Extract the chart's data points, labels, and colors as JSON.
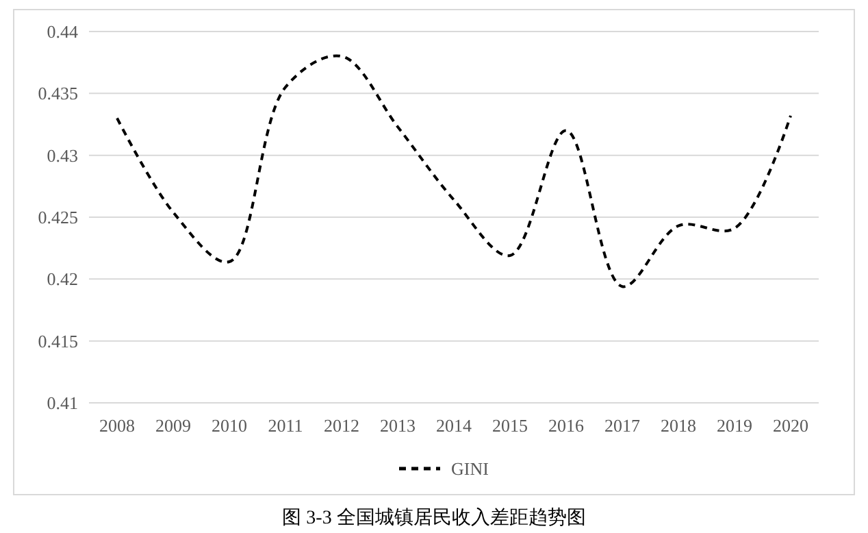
{
  "chart_data": {
    "type": "line",
    "title": "图 3-3 全国城镇居民收入差距趋势图",
    "categories": [
      "2008",
      "2009",
      "2010",
      "2011",
      "2012",
      "2013",
      "2014",
      "2015",
      "2016",
      "2017",
      "2018",
      "2019",
      "2020"
    ],
    "series": [
      {
        "name": "GINI",
        "color": "#000000",
        "values": [
          0.433,
          0.4254,
          0.4214,
          0.4355,
          0.438,
          0.4323,
          0.4264,
          0.4219,
          0.432,
          0.4194,
          0.4243,
          0.4241,
          0.4332
        ]
      }
    ],
    "ylim": [
      0.41,
      0.44
    ],
    "yticks": [
      0.41,
      0.415,
      0.42,
      0.425,
      0.43,
      0.435,
      0.44
    ],
    "grid": "y",
    "legend": "bottom",
    "line_style": "dashed",
    "marker": "none"
  }
}
